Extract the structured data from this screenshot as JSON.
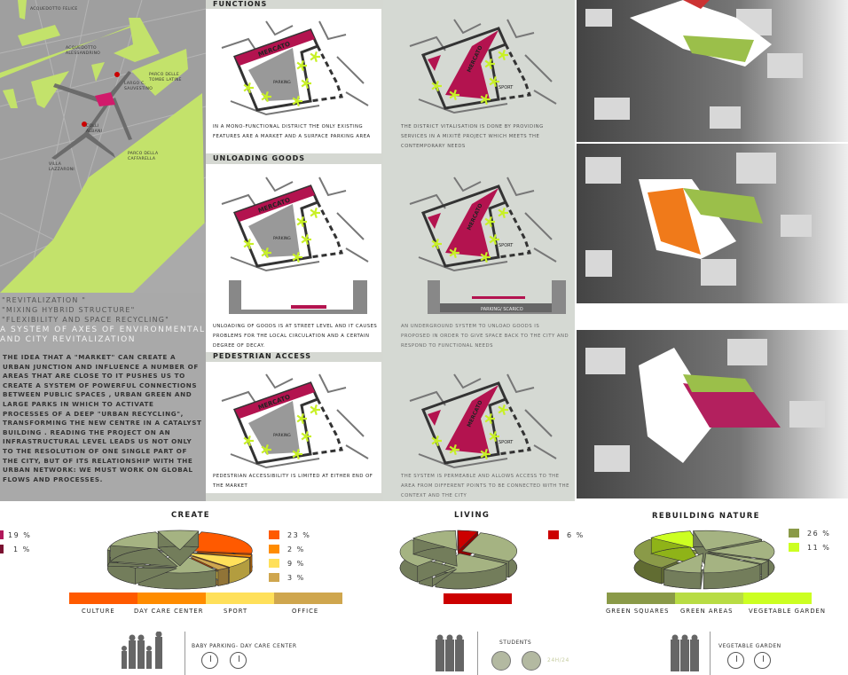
{
  "map": {
    "labels": [
      "Acquedotto Felice",
      "Acquedotto Alessandrino",
      "Parco delle Tombe Latine",
      "Largo C. Sauvestino",
      "Colli Albani",
      "Villa Lazzaroni",
      "Parco della Caffarella"
    ]
  },
  "slogans": [
    "\"REVITALIZATION \"",
    "\"MIXING HYBRID STRUCTURE\"",
    "\"FLEXIBILITY AND SPACE RECYCLING\""
  ],
  "axes_title": "A SYSTEM OF AXES OF ENVIRONMENTAL AND CITY REVITALIZATION",
  "intro": "THE IDEA THAT A \"MARKET\" CAN CREATE A URBAN JUNCTION AND INFLUENCE A NUMBER OF AREAS THAT ARE CLOSE TO IT PUSHES US TO CREATE A SYSTEM OF POWERFUL CONNECTIONS BETWEEN PUBLIC SPACES , URBAN GREEN AND LARGE PARKS IN WHICH TO ACTIVATE PROCESSES OF A DEEP \"URBAN RECYCLING\", TRANSFORMING THE NEW CENTRE IN A CATALYST BUILDING . READING THE PROJECT ON AN INFRASTRUCTURAL LEVEL LEADS US NOT ONLY TO THE RESOLUTION OF ONE SINGLE PART OF THE CITY, BUT OF ITS RELATIONSHIP WITH THE URBAN NETWORK: WE MUST WORK ON GLOBAL FLOWS AND PROCESSES.",
  "diagram_labels": {
    "mercato": "MERCATO",
    "parking": "PARKING",
    "sport": "SPORT",
    "parking_scarico": "PARKING/ SCARICO"
  },
  "sections": [
    {
      "title": "FUNCTIONS",
      "existing": "In a mono-functional district the only existing features are a market and a surface parking area",
      "proposal": "The district VITALISATION is done by providing services in a mixité project which meets the contemporary needs"
    },
    {
      "title": "UNLOADING GOODS",
      "existing": "Unloading of goods is at street level and it causes problems for the local circulation and a certain degree of decay.",
      "proposal": "An underground system to unload goods is proposed in order to give space back to the city and respond to functional needs"
    },
    {
      "title": "PEDESTRIAN ACCESS",
      "existing": "Pedestrian accessibility is limited at either end of the market",
      "proposal": "The system is permeable and allows access to the area from different points to be connected with the context and the city"
    }
  ],
  "chart_data": [
    {
      "type": "pie",
      "title": "",
      "legend": [
        {
          "label": "19 %",
          "value": 19,
          "color": "#b0175a"
        },
        {
          "label": "1 %",
          "value": 1,
          "color": "#7a1030"
        }
      ]
    },
    {
      "type": "pie",
      "title": "CREATE",
      "legend": [
        {
          "label": "23 %",
          "value": 23,
          "color": "#ff5a00"
        },
        {
          "label": "2 %",
          "value": 2,
          "color": "#ff8c00"
        },
        {
          "label": "9 %",
          "value": 9,
          "color": "#ffe05a"
        },
        {
          "label": "3 %",
          "value": 3,
          "color": "#cfa64e"
        }
      ],
      "categories": [
        "CULTURE",
        "DAY CARE CENTER",
        "SPORT",
        "OFFICE"
      ],
      "other_color": "#a5b382"
    },
    {
      "type": "pie",
      "title": "LIVING",
      "legend": [
        {
          "label": "6 %",
          "value": 6,
          "color": "#cc0000"
        }
      ],
      "categories": [
        ""
      ],
      "other_color": "#a5b382"
    },
    {
      "type": "pie",
      "title": "REBUILDING NATURE",
      "legend": [
        {
          "label": "26 %",
          "value": 26,
          "color": "#8a9a48"
        },
        {
          "label": "11 %",
          "value": 11,
          "color": "#ccff22"
        }
      ],
      "categories": [
        "GREEN SQUARES",
        "GREEN AREAS",
        "VEGETABLE GARDEN"
      ],
      "bar_colors": [
        "#8a9a48",
        "#b8dc44",
        "#ccff22"
      ],
      "other_color": "#a5b382"
    }
  ],
  "users": [
    {
      "label": "BABY PARKING- DAY CARE CENTER"
    },
    {
      "label": "STUDENTS",
      "hours": "24H/24"
    },
    {
      "label": "VEGETABLE GARDEN"
    }
  ]
}
